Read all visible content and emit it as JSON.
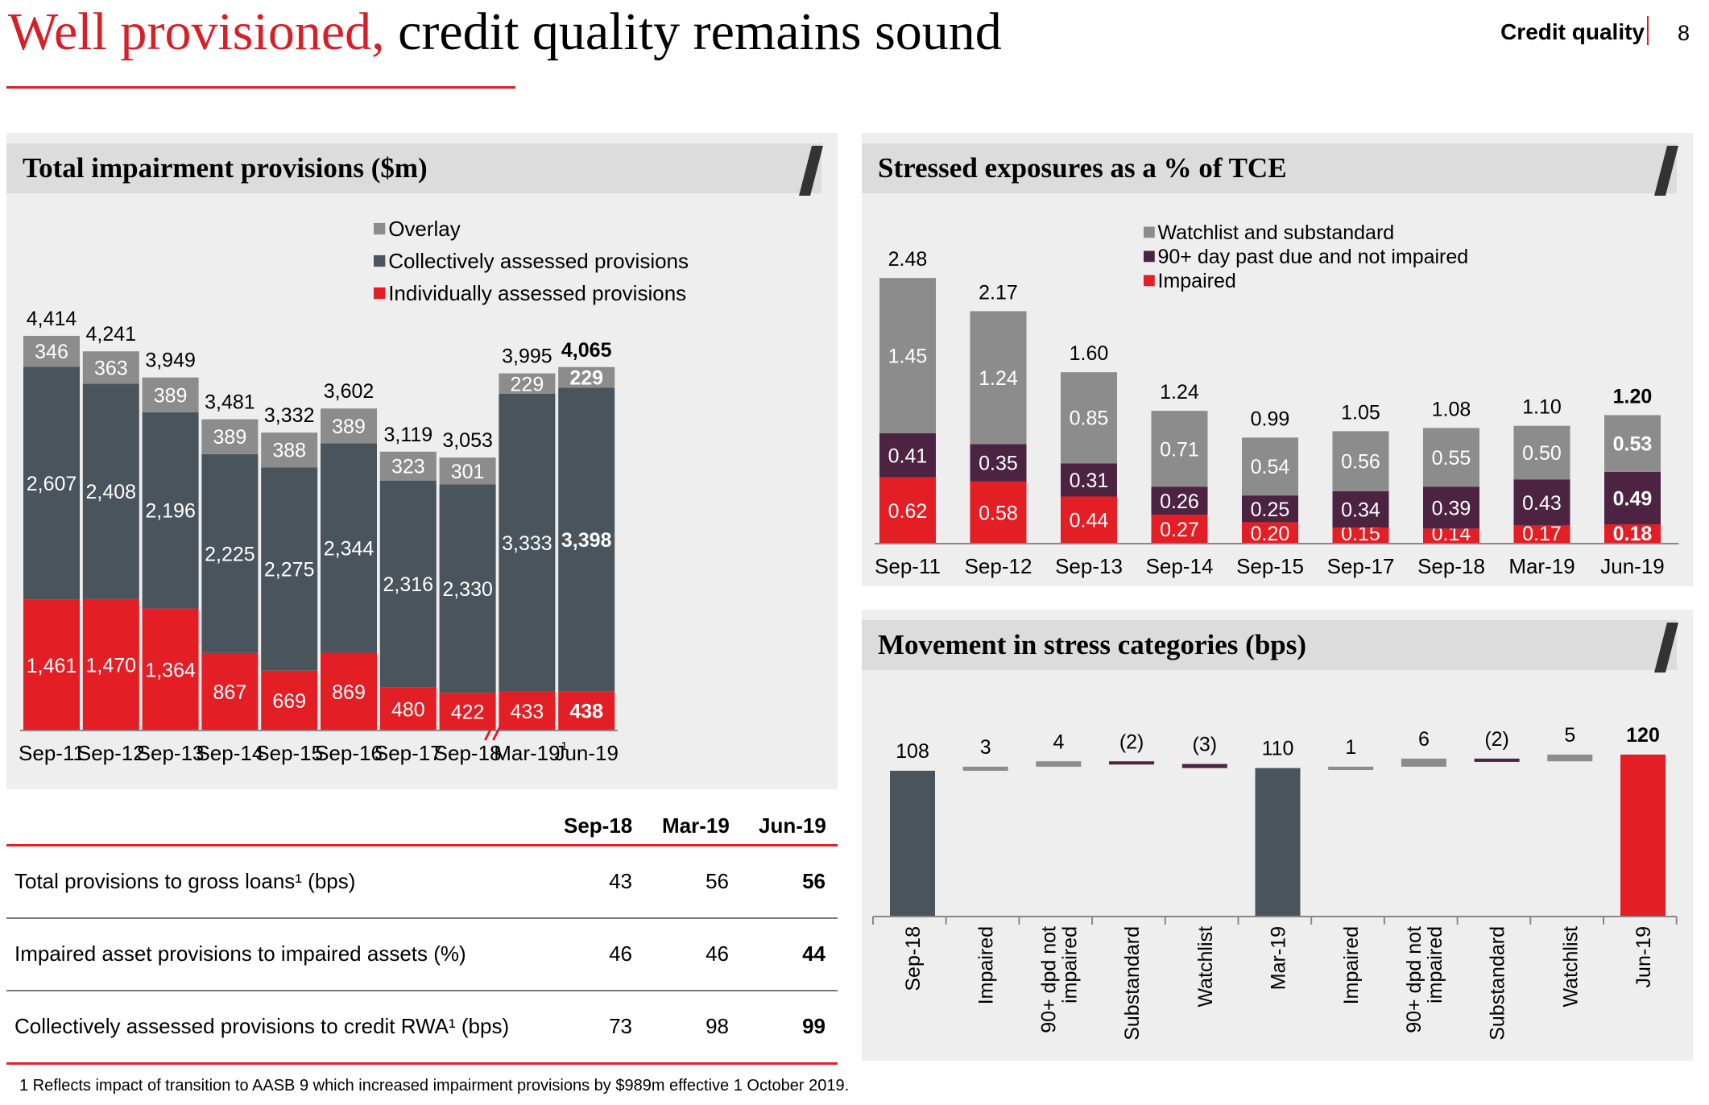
{
  "page": {
    "title_red": "Well provisioned,",
    "title_black": " credit quality remains sound",
    "section_label": "Credit quality",
    "page_number": "8",
    "colors": {
      "red": "#e31e24",
      "dark": "#4a545d",
      "grey": "#8c8c8c",
      "purple": "#4c2340",
      "accent": "#d61f26"
    }
  },
  "chart_data": [
    {
      "type": "bar",
      "stacked": true,
      "title": "Total impairment provisions ($m)",
      "categories": [
        "Sep-11",
        "Sep-12",
        "Sep-13",
        "Sep-14",
        "Sep-15",
        "Sep-16",
        "Sep-17",
        "Sep-18",
        "Mar-19",
        "Jun-19"
      ],
      "category_footnotes": {
        "Mar-19": "1"
      },
      "break_marker_between": [
        "Sep-18",
        "Mar-19"
      ],
      "series": [
        {
          "name": "Individually assessed provisions",
          "color": "#e31e24",
          "values": [
            1461,
            1470,
            1364,
            867,
            669,
            869,
            480,
            422,
            433,
            438
          ],
          "labels": [
            "1,461",
            "1,470",
            "1,364",
            "867",
            "669",
            "869",
            "480",
            "422",
            "433",
            "438"
          ]
        },
        {
          "name": "Collectively assessed provisions",
          "color": "#4a545d",
          "values": [
            2607,
            2408,
            2196,
            2225,
            2275,
            2344,
            2316,
            2330,
            3333,
            3398
          ],
          "labels": [
            "2,607",
            "2,408",
            "2,196",
            "2,225",
            "2,275",
            "2,344",
            "2,316",
            "2,330",
            "3,333",
            "3,398"
          ]
        },
        {
          "name": "Overlay",
          "color": "#8c8c8c",
          "values": [
            346,
            363,
            389,
            389,
            388,
            389,
            323,
            301,
            229,
            229
          ],
          "labels": [
            "346",
            "363",
            "389",
            "389",
            "388",
            "389",
            "323",
            "301",
            "229",
            "229"
          ]
        }
      ],
      "totals": [
        4414,
        4241,
        3949,
        3481,
        3332,
        3602,
        3119,
        3053,
        3995,
        4065
      ],
      "total_labels": [
        "4,414",
        "4,241",
        "3,949",
        "3,481",
        "3,332",
        "3,602",
        "3,119",
        "3,053",
        "3,995",
        "4,065"
      ],
      "legend": [
        "Overlay",
        "Collectively assessed provisions",
        "Individually assessed provisions"
      ],
      "highlight_last": true
    },
    {
      "type": "bar",
      "stacked": true,
      "title": "Stressed exposures as a % of TCE",
      "categories": [
        "Sep-11",
        "Sep-12",
        "Sep-13",
        "Sep-14",
        "Sep-15",
        "Sep-17",
        "Sep-18",
        "Mar-19",
        "Jun-19"
      ],
      "series": [
        {
          "name": "Impaired",
          "color": "#e31e24",
          "values": [
            0.62,
            0.58,
            0.44,
            0.27,
            0.2,
            0.15,
            0.14,
            0.17,
            0.18
          ],
          "labels": [
            "0.62",
            "0.58",
            "0.44",
            "0.27",
            "0.20",
            "0.15",
            "0.14",
            "0.17",
            "0.18"
          ]
        },
        {
          "name": "90+ day past due and not impaired",
          "color": "#4c2340",
          "values": [
            0.41,
            0.35,
            0.31,
            0.26,
            0.25,
            0.34,
            0.39,
            0.43,
            0.49
          ],
          "labels": [
            "0.41",
            "0.35",
            "0.31",
            "0.26",
            "0.25",
            "0.34",
            "0.39",
            "0.43",
            "0.49"
          ]
        },
        {
          "name": "Watchlist and substandard",
          "color": "#8c8c8c",
          "values": [
            1.45,
            1.24,
            0.85,
            0.71,
            0.54,
            0.56,
            0.55,
            0.5,
            0.53
          ],
          "labels": [
            "1.45",
            "1.24",
            "0.85",
            "0.71",
            "0.54",
            "0.56",
            "0.55",
            "0.50",
            "0.53"
          ]
        }
      ],
      "totals": [
        2.48,
        2.17,
        1.6,
        1.24,
        0.99,
        1.05,
        1.08,
        1.1,
        1.2
      ],
      "total_labels": [
        "2.48",
        "2.17",
        "1.60",
        "1.24",
        "0.99",
        "1.05",
        "1.08",
        "1.10",
        "1.20"
      ],
      "legend": [
        "Watchlist and substandard",
        "90+ day past due and not impaired",
        "Impaired"
      ],
      "highlight_last": true
    },
    {
      "type": "bar",
      "waterfall": true,
      "title": "Movement in stress categories (bps)",
      "categories": [
        "Sep-18",
        "Impaired",
        "90+ dpd not impaired",
        "Substandard",
        "Watchlist",
        "Mar-19",
        "Impaired",
        "90+ dpd not impaired",
        "Substandard",
        "Watchlist",
        "Jun-19"
      ],
      "category_lines": [
        [
          "Sep-18"
        ],
        [
          "Impaired"
        ],
        [
          "90+ dpd not",
          "impaired"
        ],
        [
          "Substandard"
        ],
        [
          "Watchlist"
        ],
        [
          "Mar-19"
        ],
        [
          "Impaired"
        ],
        [
          "90+ dpd not",
          "impaired"
        ],
        [
          "Substandard"
        ],
        [
          "Watchlist"
        ],
        [
          "Jun-19"
        ]
      ],
      "values": [
        108,
        3,
        4,
        -2,
        -3,
        110,
        1,
        6,
        -2,
        5,
        120
      ],
      "labels": [
        "108",
        "3",
        "4",
        "(2)",
        "(3)",
        "110",
        "1",
        "6",
        "(2)",
        "5",
        "120"
      ],
      "kinds": [
        "total",
        "delta",
        "delta",
        "delta",
        "delta",
        "total",
        "delta",
        "delta",
        "delta",
        "delta",
        "final"
      ],
      "colors": {
        "total": "#4a545d",
        "final": "#e31e24",
        "increase": "#8c8c8c",
        "decrease": "#4c2340"
      }
    }
  ],
  "metrics": {
    "columns": [
      "Sep-18",
      "Mar-19",
      "Jun-19"
    ],
    "rows": [
      {
        "label": "Total provisions to gross loans¹ (bps)",
        "values": [
          "43",
          "56",
          "56"
        ]
      },
      {
        "label": "Impaired asset provisions to impaired assets (%)",
        "values": [
          "46",
          "46",
          "44"
        ]
      },
      {
        "label": "Collectively assessed provisions to credit RWA¹ (bps)",
        "values": [
          "73",
          "98",
          "99"
        ]
      }
    ]
  },
  "footnote": "1 Reflects impact of transition to AASB 9 which increased impairment provisions by $989m effective 1 October 2019."
}
